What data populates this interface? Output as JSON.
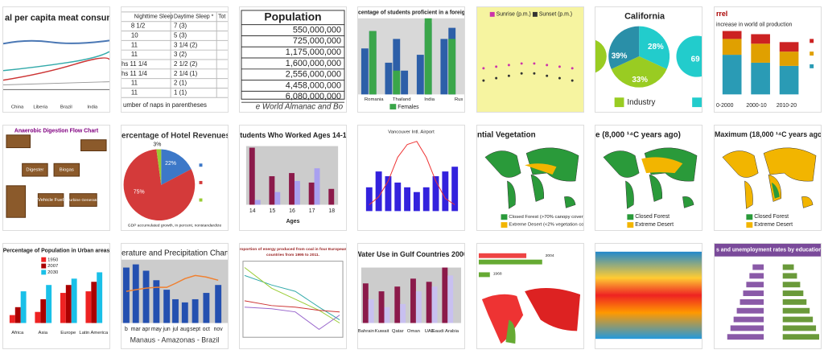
{
  "tiles": [
    {
      "title": "al per capita meat consumption",
      "labels": [
        "China",
        "Liberia",
        "Brazil",
        "India"
      ]
    },
    {
      "labels": [
        "Nighttime Sleep",
        "Daytime Sleep *",
        "Tot",
        "8 1/2",
        "7 (3)",
        "10",
        "5 (3)",
        "11",
        "3 1/4 (2)",
        "11",
        "3 (2)",
        "hs 11 1/4",
        "2 1/2 (2)",
        "hs 11 1/4",
        "2 1/4 (1)",
        "11",
        "2 (1)",
        "11",
        "1 (1)",
        "umber of naps in parentheses"
      ]
    },
    {
      "title": "Population",
      "labels": [
        "550,000,000",
        "725,000,000",
        "1,175,000,000",
        "1,600,000,000",
        "2,556,000,000",
        "4,458,000,000",
        "6,080,000,000",
        "e World Almanac and Bo"
      ]
    },
    {
      "title": "centage of students proficient in a foreign l",
      "labels": [
        "Romania",
        "Thailand",
        "India",
        "Rus",
        "Females"
      ]
    },
    {
      "labels": [
        "Sunrise (p.m.)",
        "Sunset (p.m.)"
      ]
    },
    {
      "title": "California",
      "labels": [
        "39%",
        "28%",
        "33%",
        "Industry",
        "69"
      ]
    },
    {
      "title": "rrel",
      "labels": [
        "increase in world oil production",
        "0-2000",
        "2000-10",
        "2010-20"
      ]
    },
    {
      "title": "Anaerobic Digestion Flow Chart",
      "labels": [
        "Digester",
        "Biogas",
        "Vehicle Fuel",
        "Turbine Generator"
      ]
    },
    {
      "title": "ercentage of Hotel Revenues by Cla",
      "labels": [
        "22%",
        "75%",
        "3%",
        "GDP accumulated growth, in percent, nonstandardize"
      ]
    },
    {
      "title": "Students Who Worked Ages 14-18",
      "labels": [
        "14",
        "15",
        "16",
        "17",
        "18",
        "Ages"
      ]
    },
    {
      "title": "Vancouver Intl. Airport",
      "labels": []
    },
    {
      "title": "ntial Vegetation",
      "labels": [
        "Closed Forest (>70% canopy cover)",
        "Extreme Desert (<2% vegetation cover)"
      ]
    },
    {
      "title": "e (8,000 ¹⁴C years ago)",
      "labels": [
        "Closed Forest",
        "Extreme Desert"
      ]
    },
    {
      "title": "Maximum (18,000 ¹⁴C years ago)",
      "labels": [
        "Closed Forest",
        "Extreme Desert"
      ]
    },
    {
      "title": "Percentage of Population in Urban areas",
      "labels": [
        "1950",
        "2007",
        "2030",
        "Africa",
        "Asia",
        "Europe",
        "Latin America"
      ]
    },
    {
      "title": "erature and Precipitation Chart (Y",
      "labels": [
        "b",
        "mar",
        "apr",
        "may",
        "jun",
        "jul",
        "aug",
        "sept",
        "oct",
        "nov",
        "Manaus - Amazonas - Brazil"
      ]
    },
    {
      "labels": [
        "roportion of energy produced from coal in four European",
        "countries from 1995 to 2011."
      ]
    },
    {
      "title": "Water Use in Gulf Countries 2000",
      "labels": [
        "Bahrain",
        "Kuwait",
        "Qatar",
        "Oman",
        "UAE",
        "Saudi Arabia"
      ]
    },
    {
      "labels": [
        "2004",
        "1968"
      ]
    },
    {
      "labels": []
    },
    {
      "title": "s and unemployment rates by educational attai",
      "labels": []
    }
  ]
}
